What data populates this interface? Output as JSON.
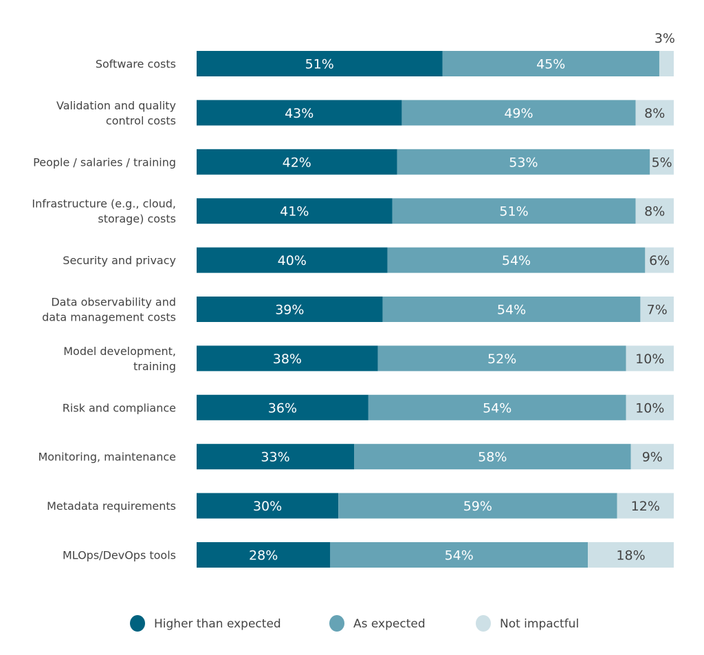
{
  "chart_data": {
    "type": "bar",
    "orientation": "horizontal",
    "stacked": true,
    "normalized": true,
    "categories": [
      [
        "Software costs"
      ],
      [
        "Validation and quality",
        "control costs"
      ],
      [
        "People / salaries / training"
      ],
      [
        "Infrastructure (e.g., cloud,",
        "storage) costs"
      ],
      [
        "Security and privacy"
      ],
      [
        "Data observability and",
        "data management costs"
      ],
      [
        "Model development,",
        "training"
      ],
      [
        "Risk and compliance"
      ],
      [
        "Monitoring, maintenance"
      ],
      [
        "Metadata requirements"
      ],
      [
        "MLOps/DevOps tools"
      ]
    ],
    "series": [
      {
        "name": "Higher than expected",
        "color": "#00627f",
        "label_color": "#ffffff",
        "values": [
          51,
          43,
          42,
          41,
          40,
          39,
          38,
          36,
          33,
          30,
          28
        ]
      },
      {
        "name": "As expected",
        "color": "#66a3b5",
        "label_color": "#ffffff",
        "values": [
          45,
          49,
          53,
          51,
          54,
          54,
          52,
          54,
          58,
          59,
          54
        ]
      },
      {
        "name": "Not impactful",
        "color": "#cde0e6",
        "label_color": "#444444",
        "values": [
          3,
          8,
          5,
          8,
          6,
          7,
          10,
          10,
          9,
          12,
          18
        ]
      }
    ],
    "value_suffix": "%",
    "legend_position": "bottom",
    "grid": false
  }
}
